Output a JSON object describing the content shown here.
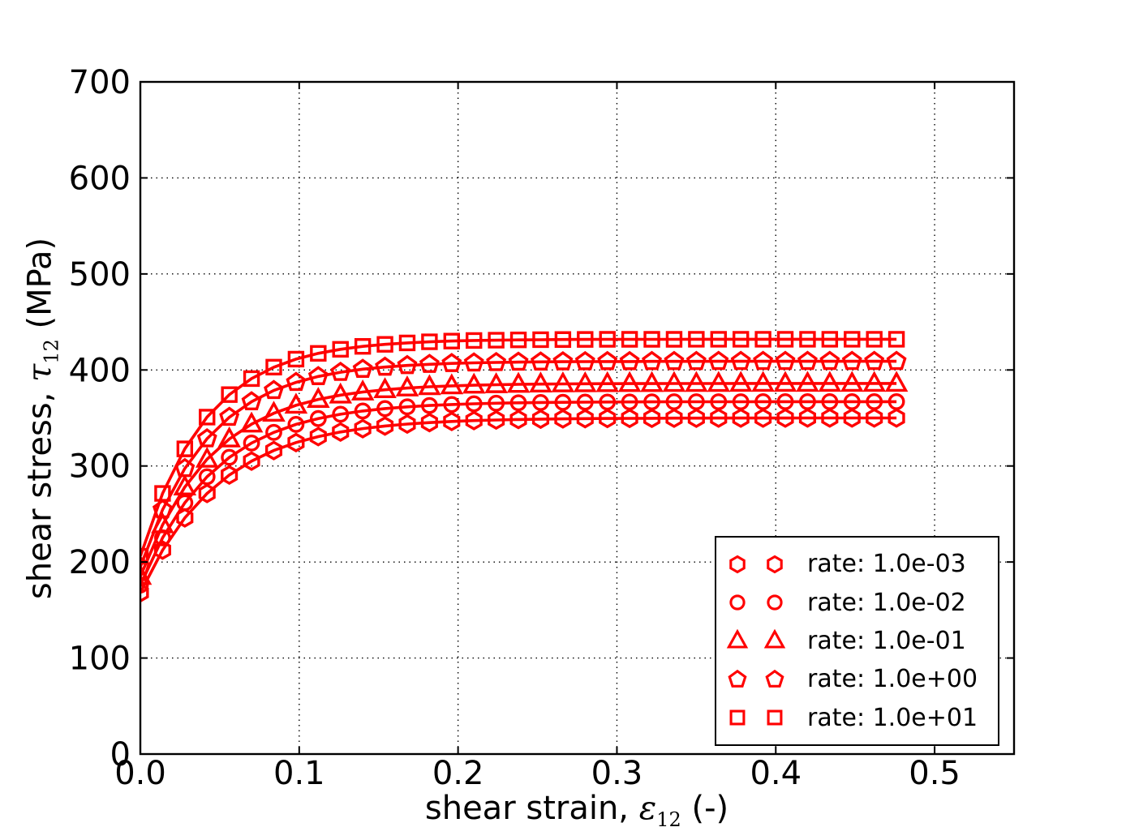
{
  "figure": {
    "background": "#ffffff",
    "curve_color": "#ff0000",
    "text_color": "#000000"
  },
  "axes": {
    "xlabel": {
      "prefix": "shear strain, ",
      "symbol": "ε",
      "subscript": "12",
      "suffix": " (-)"
    },
    "ylabel": {
      "prefix": "shear stress, ",
      "symbol": "τ",
      "subscript": "12",
      "suffix": " (MPa)"
    }
  },
  "chart_data": {
    "type": "line",
    "title": "",
    "xlabel": "shear strain, ε12 (-)",
    "ylabel": "shear stress, τ12 (MPa)",
    "xlim": [
      0,
      0.55
    ],
    "ylim": [
      0,
      700
    ],
    "xticks": [
      0,
      0.1,
      0.2,
      0.3,
      0.4,
      0.5
    ],
    "xtick_labels": [
      "0.0",
      "0.1",
      "0.2",
      "0.3",
      "0.4",
      "0.5"
    ],
    "yticks": [
      0,
      100,
      200,
      300,
      400,
      500,
      600,
      700
    ],
    "ytick_labels": [
      "0",
      "100",
      "200",
      "300",
      "400",
      "500",
      "600",
      "700"
    ],
    "grid": true,
    "grid_style": "dotted",
    "legend_position": "lower right",
    "color": "#ff0000",
    "x": [
      0.0,
      0.014,
      0.028,
      0.042,
      0.056,
      0.07,
      0.084,
      0.098,
      0.112,
      0.126,
      0.14,
      0.154,
      0.168,
      0.182,
      0.196,
      0.21,
      0.224,
      0.238,
      0.252,
      0.266,
      0.28,
      0.294,
      0.308,
      0.322,
      0.336,
      0.35,
      0.364,
      0.378,
      0.392,
      0.406,
      0.42,
      0.434,
      0.448,
      0.462,
      0.476
    ],
    "series": [
      {
        "name": "rate: 1.0e-03",
        "marker": "hexagon",
        "y": [
          168.0,
          212.4,
          246.0,
          271.4,
          290.6,
          305.1,
          316.1,
          324.4,
          330.6,
          335.4,
          338.9,
          341.6,
          343.7,
          345.2,
          346.4,
          347.3,
          347.9,
          348.4,
          348.8,
          349.1,
          349.3,
          349.5,
          349.6,
          349.7,
          349.8,
          349.8,
          349.9,
          349.9,
          349.9,
          349.9,
          350.0,
          350.0,
          350.0,
          350.0,
          350.0
        ]
      },
      {
        "name": "rate: 1.0e-02",
        "marker": "circle",
        "y": [
          176.0,
          225.2,
          261.7,
          288.8,
          309.0,
          323.9,
          335.0,
          343.3,
          349.4,
          353.9,
          357.3,
          359.8,
          361.6,
          363.0,
          364.0,
          364.8,
          365.4,
          365.8,
          366.1,
          366.3,
          366.5,
          366.6,
          366.7,
          366.8,
          366.9,
          366.9,
          366.9,
          366.9,
          367.0,
          367.0,
          367.0,
          367.0,
          367.0,
          367.0,
          367.0
        ]
      },
      {
        "name": "rate: 1.0e-01",
        "marker": "triangle-up",
        "y": [
          185.0,
          238.7,
          278.1,
          307.0,
          328.1,
          343.6,
          354.9,
          363.2,
          369.3,
          373.8,
          377.0,
          379.4,
          381.2,
          382.5,
          383.4,
          384.1,
          384.6,
          385.0,
          385.3,
          385.5,
          385.6,
          385.7,
          385.8,
          385.8,
          385.9,
          385.9,
          385.9,
          386.0,
          386.0,
          386.0,
          386.0,
          386.0,
          386.0,
          386.0,
          386.0
        ]
      },
      {
        "name": "rate: 1.0e+00",
        "marker": "pentagon",
        "y": [
          195.0,
          254.5,
          297.4,
          328.4,
          350.8,
          367.0,
          378.7,
          387.1,
          393.2,
          397.6,
          400.8,
          403.0,
          404.7,
          405.9,
          406.8,
          407.4,
          407.8,
          408.2,
          408.4,
          408.6,
          408.7,
          408.8,
          408.8,
          408.9,
          408.9,
          408.9,
          409.0,
          409.0,
          409.0,
          409.0,
          409.0,
          409.0,
          409.0,
          409.0,
          409.0
        ]
      },
      {
        "name": "rate: 1.0e+01",
        "marker": "square",
        "y": [
          206.0,
          271.4,
          317.8,
          350.9,
          374.3,
          391.0,
          402.9,
          411.3,
          417.3,
          421.5,
          424.6,
          426.7,
          428.2,
          429.3,
          430.1,
          430.7,
          431.0,
          431.3,
          431.5,
          431.7,
          431.8,
          431.9,
          431.9,
          431.9,
          431.9,
          432.0,
          432.0,
          432.0,
          432.0,
          432.0,
          432.0,
          432.0,
          432.0,
          432.0,
          432.0
        ]
      }
    ]
  }
}
